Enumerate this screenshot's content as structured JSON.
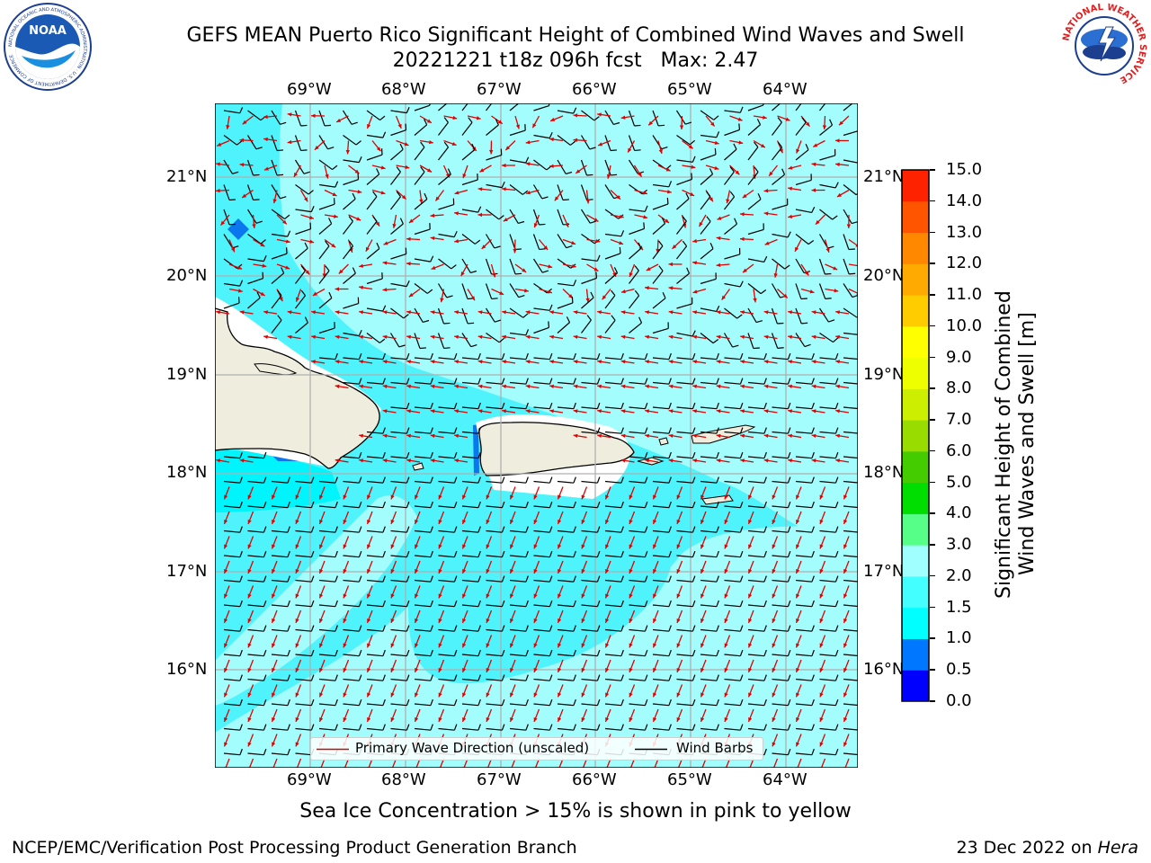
{
  "title": {
    "line1": "GEFS MEAN Puerto Rico Significant Height of Combined Wind Waves and Swell",
    "line2": "20221221 t18z 096h fcst   Max: 2.47"
  },
  "logos": {
    "left_name": "NOAA",
    "left_ring_text": "NATIONAL OCEANIC AND ATMOSPHERIC ADMINISTRATION · U.S. DEPARTMENT OF COMMERCE",
    "right_ring_text": "NATIONAL WEATHER SERVICE"
  },
  "map": {
    "lon_labels": [
      "69°W",
      "68°W",
      "67°W",
      "66°W",
      "65°W",
      "64°W"
    ],
    "lat_labels": [
      "21°N",
      "20°N",
      "19°N",
      "18°N",
      "17°N",
      "16°N"
    ],
    "legend": {
      "wave_label": "Primary Wave Direction (unscaled)",
      "wind_label": "Wind Barbs",
      "wave_color": "#e00000",
      "wind_color": "#000000"
    }
  },
  "colorbar": {
    "label_line1": "Significant Height of Combined",
    "label_line2": "Wind Waves and Swell [m]",
    "ticks": [
      "0.0",
      "0.5",
      "1.0",
      "1.5",
      "2.0",
      "3.0",
      "4.0",
      "5.0",
      "6.0",
      "7.0",
      "8.0",
      "9.0",
      "10.0",
      "11.0",
      "12.0",
      "13.0",
      "14.0",
      "15.0"
    ],
    "colors": [
      "#0000ff",
      "#0077ff",
      "#00ffff",
      "#44ffff",
      "#a0ffff",
      "#55ff88",
      "#00dd00",
      "#44cc00",
      "#99dd00",
      "#ccee00",
      "#eeff00",
      "#ffff00",
      "#ffcc00",
      "#ffaa00",
      "#ff8800",
      "#ff5500",
      "#ff2200"
    ]
  },
  "colors": {
    "land": "#efeddd",
    "sea_15": "#4ff3fb",
    "sea_2": "#a4fdfd",
    "sea_1": "#00f4fb",
    "sea_05": "#0a77ee"
  },
  "caption": "Sea Ice Concentration > 15% is shown in pink to yellow",
  "footer": {
    "left": "NCEP/EMC/Verification Post Processing Product Generation Branch",
    "right_prefix": "23 Dec 2022 on ",
    "right_machine": "Hera"
  }
}
